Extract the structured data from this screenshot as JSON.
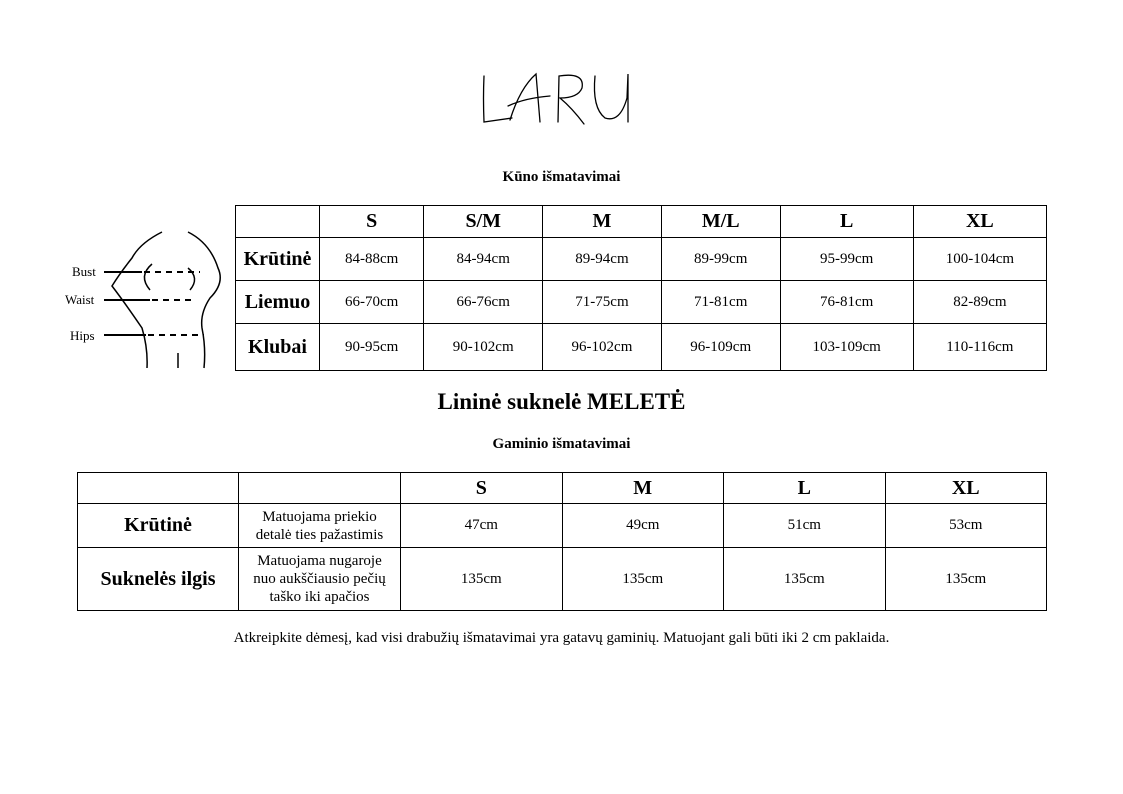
{
  "logo": "LARU",
  "body_table": {
    "title": "Kūno išmatavimai",
    "sizes": [
      "S",
      "S/M",
      "M",
      "M/L",
      "L",
      "XL"
    ],
    "rows": [
      {
        "label": "Krūtinė",
        "values": [
          "84-88cm",
          "84-94cm",
          "89-94cm",
          "89-99cm",
          "95-99cm",
          "100-104cm"
        ]
      },
      {
        "label": "Liemuo",
        "values": [
          "66-70cm",
          "66-76cm",
          "71-75cm",
          "71-81cm",
          "76-81cm",
          "82-89cm"
        ]
      },
      {
        "label": "Klubai",
        "values": [
          "90-95cm",
          "90-102cm",
          "96-102cm",
          "96-109cm",
          "103-109cm",
          "110-116cm"
        ]
      }
    ]
  },
  "figure": {
    "labels": [
      "Bust",
      "Waist",
      "Hips"
    ]
  },
  "product_title": "Lininė suknelė MELETĖ",
  "product_table": {
    "title": "Gaminio išmatavimai",
    "sizes": [
      "S",
      "M",
      "L",
      "XL"
    ],
    "rows": [
      {
        "label": "Krūtinė",
        "desc": [
          "Matuojama priekio",
          "detalė ties pažastimis"
        ],
        "values": [
          "47cm",
          "49cm",
          "51cm",
          "53cm"
        ]
      },
      {
        "label": "Suknelės ilgis",
        "desc": [
          "Matuojama nugaroje",
          "nuo aukščiausio pečių",
          "taško iki apačios"
        ],
        "values": [
          "135cm",
          "135cm",
          "135cm",
          "135cm"
        ]
      }
    ]
  },
  "note": "Atkreipkite dėmesį, kad visi drabužių išmatavimai yra gatavų gaminių. Matuojant gali būti iki 2 cm paklaida."
}
